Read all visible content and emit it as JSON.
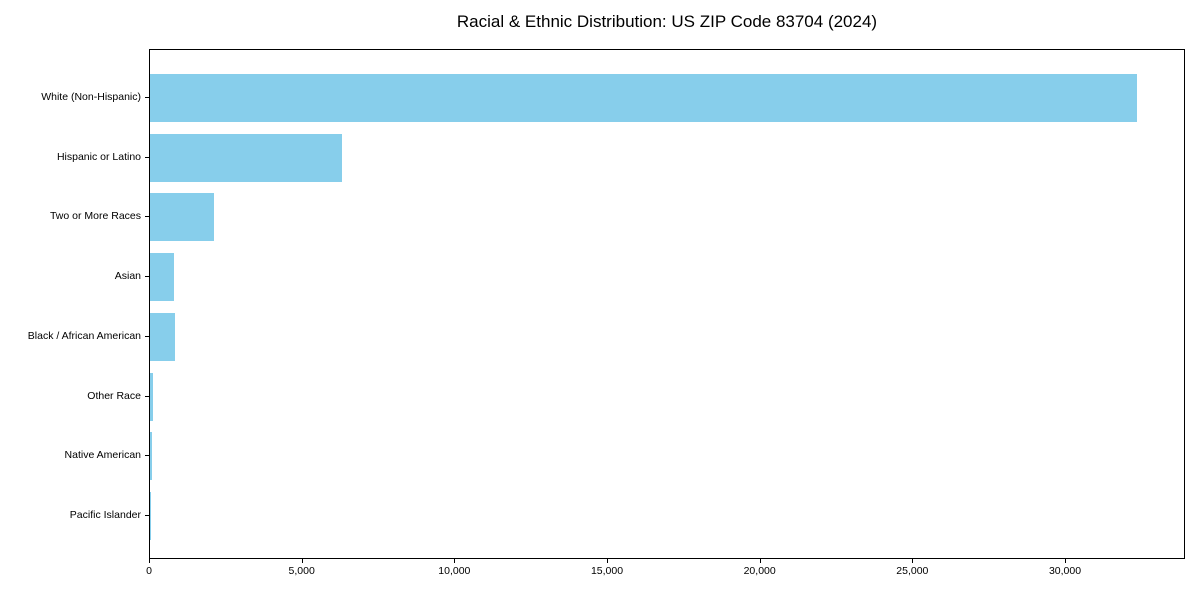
{
  "chart_data": {
    "type": "bar",
    "orientation": "horizontal",
    "title": "Racial & Ethnic Distribution: US ZIP Code 83704 (2024)",
    "categories": [
      "White (Non-Hispanic)",
      "Hispanic or Latino",
      "Two or More Races",
      "Asian",
      "Black / African American",
      "Other Race",
      "Native American",
      "Pacific Islander"
    ],
    "values": [
      32310,
      6290,
      2085,
      775,
      805,
      110,
      70,
      20
    ],
    "xlabel": "",
    "ylabel": "",
    "xlim": [
      0,
      33930
    ],
    "x_ticks": [
      {
        "label": "0",
        "value": 0
      },
      {
        "label": "5,000",
        "value": 5000
      },
      {
        "label": "10,000",
        "value": 10000
      },
      {
        "label": "15,000",
        "value": 15000
      },
      {
        "label": "20,000",
        "value": 20000
      },
      {
        "label": "25,000",
        "value": 25000
      },
      {
        "label": "30,000",
        "value": 30000
      }
    ],
    "bar_color": "#87CEEB",
    "grid": false,
    "legend": false
  }
}
